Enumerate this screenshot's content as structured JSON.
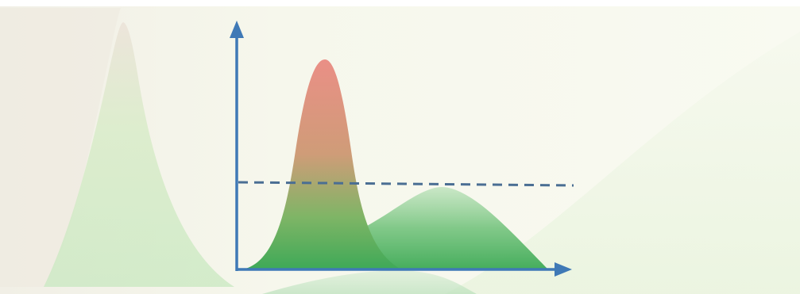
{
  "diagram": {
    "type": "distribution-curves",
    "curves": [
      {
        "shape": "narrow-tall-peak",
        "fill_top": "#e7928a",
        "fill_bottom": "#3fae57"
      },
      {
        "shape": "wide-low-hump",
        "fill": "#48b15f"
      }
    ],
    "threshold_line": {
      "style": "dashed",
      "color": "#4a6e93"
    },
    "axes": {
      "color": "#3f79b6",
      "x_arrow": true,
      "y_arrow": true
    },
    "background_shapes": [
      {
        "shape": "faded-left-peak",
        "color": "#dfe8cf"
      },
      {
        "shape": "faded-right-hill",
        "color": "#f1f6e6"
      }
    ]
  },
  "colors": {
    "page_background": "#f8f9f1",
    "top_band": "#ffffff"
  }
}
